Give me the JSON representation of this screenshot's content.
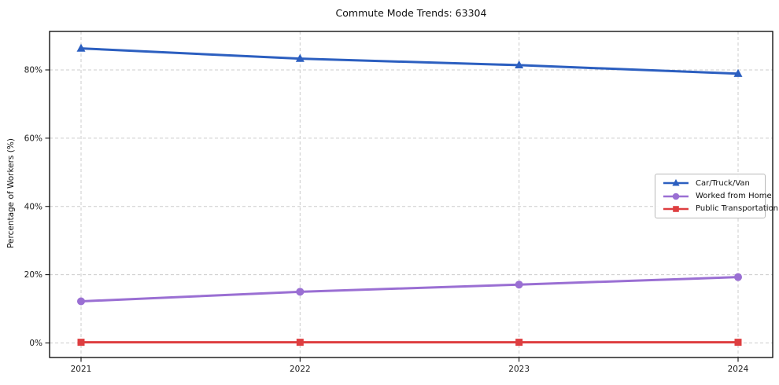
{
  "title": "Commute Mode Trends: 63304",
  "axes": {
    "ylabel": "Percentage of Workers (%)",
    "x_tick_labels": [
      "2021",
      "2022",
      "2023",
      "2024"
    ],
    "y_tick_labels": [
      "0%",
      "20%",
      "40%",
      "60%",
      "80%"
    ]
  },
  "legend": {
    "position": "center right",
    "entries": [
      "Car/Truck/Van",
      "Worked from Home",
      "Public Transportation"
    ]
  },
  "chart_data": {
    "type": "line",
    "title": "Commute Mode Trends: 63304",
    "xlabel": "",
    "ylabel": "Percentage of Workers (%)",
    "x": [
      2021,
      2022,
      2023,
      2024
    ],
    "x_tick_labels": [
      "2021",
      "2022",
      "2023",
      "2024"
    ],
    "y_tick_values": [
      0,
      20,
      40,
      60,
      80
    ],
    "y_tick_labels": [
      "0%",
      "20%",
      "40%",
      "60%",
      "80%"
    ],
    "ylim": [
      -4.3,
      91.4
    ],
    "grid": true,
    "grid_style": "dashed",
    "legend_position": "center right",
    "series": [
      {
        "name": "Car/Truck/Van",
        "values": [
          86.3,
          83.3,
          81.4,
          78.9
        ],
        "color": "#2c5fc0",
        "marker": "triangle"
      },
      {
        "name": "Worked from Home",
        "values": [
          12.2,
          15.0,
          17.1,
          19.3
        ],
        "color": "#9a6fd3",
        "marker": "circle"
      },
      {
        "name": "Public Transportation",
        "values": [
          0.2,
          0.2,
          0.2,
          0.2
        ],
        "color": "#de3e40",
        "marker": "square"
      }
    ]
  },
  "colors": {
    "background": "#ffffff",
    "grid": "#cccccc",
    "spine": "#000000",
    "text": "#1a1a1a",
    "blue": "#2c5fc0",
    "purple": "#9a6fd3",
    "red": "#de3e40"
  }
}
